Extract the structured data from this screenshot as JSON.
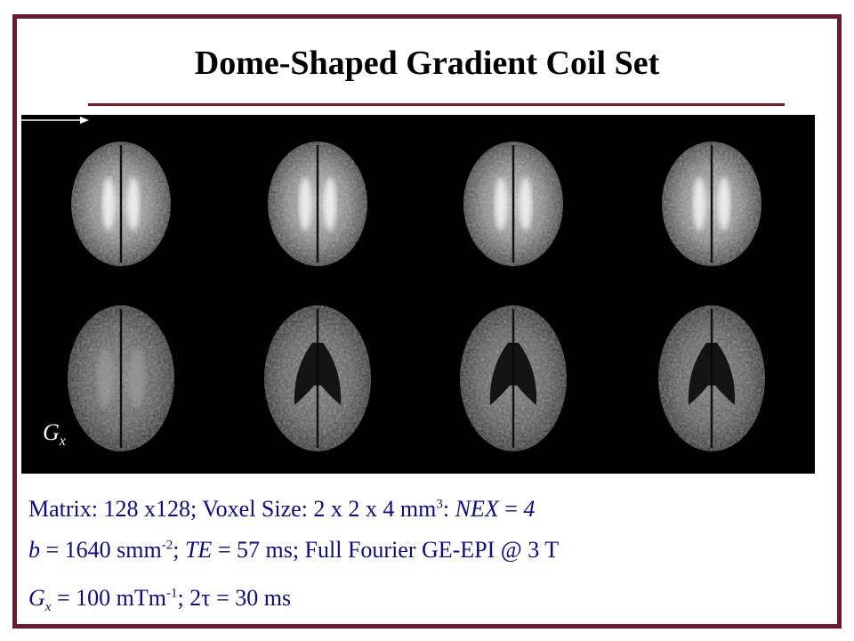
{
  "slide": {
    "title": "Dome-Shaped Gradient Coil Set"
  },
  "figure": {
    "axis_label": "G",
    "axis_label_sub": "x",
    "slices": [
      {
        "row": 0,
        "col": 0,
        "shape": "upper"
      },
      {
        "row": 0,
        "col": 1,
        "shape": "upper"
      },
      {
        "row": 0,
        "col": 2,
        "shape": "upper"
      },
      {
        "row": 0,
        "col": 3,
        "shape": "upper"
      },
      {
        "row": 1,
        "col": 0,
        "shape": "lower"
      },
      {
        "row": 1,
        "col": 1,
        "shape": "ventricle"
      },
      {
        "row": 1,
        "col": 2,
        "shape": "ventricle"
      },
      {
        "row": 1,
        "col": 3,
        "shape": "ventricle"
      }
    ]
  },
  "params": {
    "line1": {
      "a": "Matrix: 128 x128; Voxel Size: 2 x 2 x 4 mm",
      "a_sup": "3",
      "b": ": ",
      "c_italic": "NEX",
      "d": " = ",
      "e_italic": "4"
    },
    "line2": {
      "a_italic": "b",
      "b": " =  1640 smm",
      "b_sup": "-2",
      "c": ";  ",
      "d_italic": "TE",
      "e": " = 57 ms; Full Fourier GE-EPI @ 3 T"
    },
    "line3": {
      "a_italic": "G",
      "a_sub": "x",
      "b": " = 100 mTm",
      "b_sup": "-1",
      "c": "; 2τ = 30 ms"
    }
  },
  "colors": {
    "frame": "#6b1a35",
    "rule": "#7a1a2a",
    "param_text": "#0d0d80"
  }
}
